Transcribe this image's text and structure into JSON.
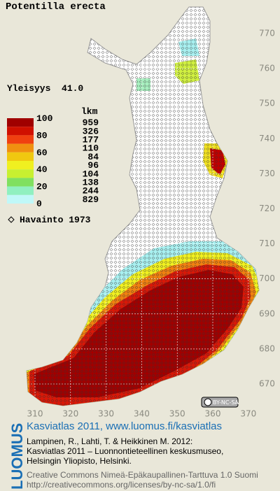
{
  "map": {
    "title": "Potentilla erecta",
    "frequency": "Yleisyys  41.0"
  },
  "legend": {
    "unit": "lkm",
    "levels": [
      "100",
      "80",
      "60",
      "40",
      "20",
      "0"
    ],
    "counts": [
      "959",
      "326",
      "177",
      "110",
      "84",
      "96",
      "104",
      "138",
      "244",
      "829"
    ],
    "observation": "Havainto 1973"
  },
  "grid": {
    "y_labels": [
      "770",
      "760",
      "750",
      "740",
      "730",
      "720",
      "710",
      "700",
      "690",
      "680",
      "670"
    ],
    "x_labels": [
      "310",
      "320",
      "330",
      "340",
      "350",
      "360",
      "370"
    ]
  },
  "license_badge": "BY-NC-SA",
  "footer": {
    "brand": "LUOMUS",
    "title": "Kasviatlas 2011, www.luomus.fi/kasviatlas",
    "citation": [
      "Lampinen, R., Lahti, T. & Heikkinen M. 2012:",
      "Kasviatlas 2011 – Luonnontieteellinen keskusmuseo,",
      "Helsingin Yliopisto, Helsinki."
    ],
    "license": [
      "Creative Commons Nimeä-Epäkaupallinen-Tarttuva 1.0 Suomi",
      "http://creativecommons.org/licenses/by-nc-sa/1.0/fi"
    ]
  }
}
